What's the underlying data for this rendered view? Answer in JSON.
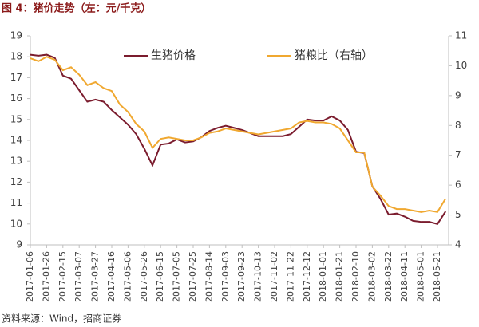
{
  "chart_data": {
    "type": "line",
    "title": "图 4：猪价走势（左：元/千克）",
    "source": "资料来源：Wind，招商证券",
    "categories": [
      "2017-01-06",
      null,
      "2017-01-26",
      null,
      "2017-02-15",
      null,
      "2017-03-07",
      null,
      "2017-03-27",
      null,
      "2017-04-16",
      null,
      "2017-05-06",
      null,
      "2017-05-26",
      null,
      "2017-06-15",
      null,
      "2017-07-05",
      null,
      "2017-07-25",
      null,
      "2017-08-14",
      null,
      "2017-09-03",
      null,
      "2017-09-23",
      null,
      "2017-10-13",
      null,
      "2017-11-02",
      null,
      "2017-11-22",
      null,
      "2017-12-12",
      null,
      "2018-01-01",
      null,
      "2018-01-21",
      null,
      "2018-02-10",
      null,
      "2018-03-02",
      null,
      "2018-03-22",
      null,
      "2018-04-11",
      null,
      "2018-05-01",
      null,
      "2018-05-21",
      null
    ],
    "series": [
      {
        "name": "生猪价格",
        "color": "#7b1c2e",
        "values": [
          18.1,
          18.05,
          18.1,
          17.95,
          17.1,
          16.95,
          16.4,
          15.85,
          15.95,
          15.85,
          15.45,
          15.1,
          14.75,
          14.3,
          13.6,
          12.8,
          13.8,
          13.85,
          14.05,
          13.9,
          13.95,
          14.15,
          14.45,
          14.6,
          14.7,
          14.6,
          14.5,
          14.35,
          14.2,
          14.2,
          14.2,
          14.2,
          14.3,
          14.65,
          15.0,
          14.95,
          14.95,
          15.15,
          14.95,
          14.5,
          13.45,
          13.4,
          11.8,
          11.2,
          10.45,
          10.5,
          10.35,
          10.15,
          10.1,
          10.1,
          10.0,
          10.6
        ]
      },
      {
        "name": "猪粮比（右轴）",
        "color": "#f0a830",
        "axis": "y2",
        "values": [
          10.25,
          10.15,
          10.3,
          10.2,
          9.85,
          9.95,
          9.7,
          9.35,
          9.45,
          9.25,
          9.15,
          8.7,
          8.45,
          8.05,
          7.8,
          7.25,
          7.55,
          7.6,
          7.55,
          7.5,
          7.5,
          7.6,
          7.75,
          7.8,
          7.9,
          7.85,
          7.8,
          7.75,
          7.7,
          7.75,
          7.8,
          7.85,
          7.9,
          8.1,
          8.15,
          8.1,
          8.1,
          8.05,
          7.9,
          7.5,
          7.1,
          7.1,
          5.95,
          5.65,
          5.3,
          5.2,
          5.2,
          5.15,
          5.1,
          5.15,
          5.1,
          5.55
        ]
      }
    ],
    "ylim": [
      9,
      19
    ],
    "yticks": [
      9,
      10,
      11,
      12,
      13,
      14,
      15,
      16,
      17,
      18,
      19
    ],
    "y2lim": [
      4,
      11
    ],
    "y2ticks": [
      4,
      5,
      6,
      7,
      8,
      9,
      10,
      11
    ],
    "grid": false,
    "legend": "top"
  }
}
